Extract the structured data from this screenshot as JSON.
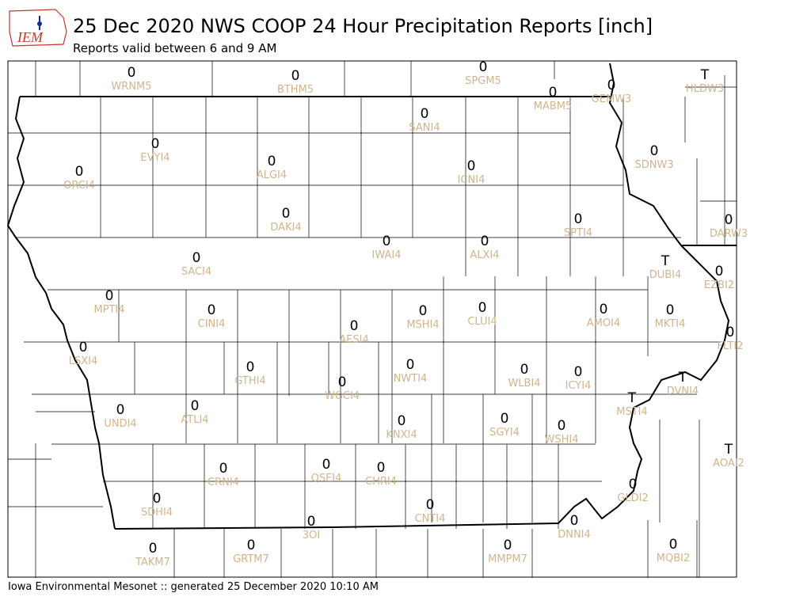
{
  "header": {
    "logo": "IEM",
    "title": "25 Dec 2020 NWS COOP 24 Hour Precipitation Reports [inch]",
    "subtitle": "Reports valid between 6 and 9 AM"
  },
  "stations": [
    {
      "id": "WRNM5",
      "value": 0
    },
    {
      "id": "BTHM5",
      "value": 0
    },
    {
      "id": "SPGM5",
      "value": 0
    },
    {
      "id": "MABM5",
      "value": 0
    },
    {
      "id": "GEMW3",
      "value": 0
    },
    {
      "id": "HLDW3",
      "value": "T"
    },
    {
      "id": "SANI4",
      "value": 0
    },
    {
      "id": "EVYI4",
      "value": 0
    },
    {
      "id": "ALGI4",
      "value": 0
    },
    {
      "id": "ORCI4",
      "value": 0
    },
    {
      "id": "ICNI4",
      "value": 0
    },
    {
      "id": "SDNW3",
      "value": 0
    },
    {
      "id": "DAKI4",
      "value": 0
    },
    {
      "id": "SPTI4",
      "value": 0
    },
    {
      "id": "DARW3",
      "value": 0
    },
    {
      "id": "IWAI4",
      "value": 0
    },
    {
      "id": "ALXI4",
      "value": 0
    },
    {
      "id": "SACI4",
      "value": 0
    },
    {
      "id": "DUBI4",
      "value": "T"
    },
    {
      "id": "EZBI2",
      "value": 0
    },
    {
      "id": "MPTI4",
      "value": 0
    },
    {
      "id": "CINI4",
      "value": 0
    },
    {
      "id": "CLUI4",
      "value": 0
    },
    {
      "id": "AMOI4",
      "value": 0
    },
    {
      "id": "MKTI4",
      "value": 0
    },
    {
      "id": "MSHI4",
      "value": 0
    },
    {
      "id": "AESI4",
      "value": 0
    },
    {
      "id": "FLTI2",
      "value": 0
    },
    {
      "id": "LSXI4",
      "value": 0
    },
    {
      "id": "NWTI4",
      "value": 0
    },
    {
      "id": "GTHI4",
      "value": 0
    },
    {
      "id": "WLBI4",
      "value": 0
    },
    {
      "id": "ICYI4",
      "value": 0
    },
    {
      "id": "DVNI4",
      "value": "T"
    },
    {
      "id": "WGCI4",
      "value": 0
    },
    {
      "id": "MSTI4",
      "value": "T"
    },
    {
      "id": "ATLI4",
      "value": 0
    },
    {
      "id": "UNDI4",
      "value": 0
    },
    {
      "id": "KNXI4",
      "value": 0
    },
    {
      "id": "SGYI4",
      "value": 0
    },
    {
      "id": "WSHI4",
      "value": 0
    },
    {
      "id": "AOAI2",
      "value": "T"
    },
    {
      "id": "QSEI4",
      "value": 0
    },
    {
      "id": "CHRI4",
      "value": 0
    },
    {
      "id": "CRNI4",
      "value": 0
    },
    {
      "id": "GLDI2",
      "value": 0
    },
    {
      "id": "SDHI4",
      "value": 0
    },
    {
      "id": "CNTI4",
      "value": 0
    },
    {
      "id": "3OI",
      "value": 0
    },
    {
      "id": "DNNI4",
      "value": 0
    },
    {
      "id": "TAKM7",
      "value": 0
    },
    {
      "id": "GRTM7",
      "value": 0
    },
    {
      "id": "MMPM7",
      "value": 0
    },
    {
      "id": "MQBI2",
      "value": 0
    }
  ],
  "footer": "Iowa Environmental Mesonet :: generated 25 December 2020 10:10 AM"
}
